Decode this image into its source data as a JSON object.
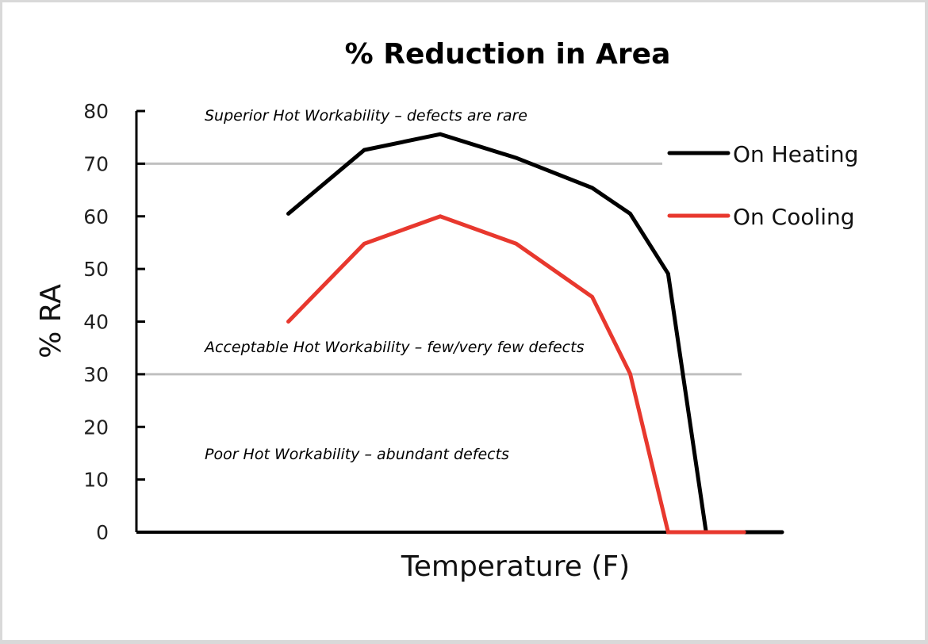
{
  "chart_data": {
    "type": "line",
    "title": "% Reduction in Area",
    "xlabel": "Temperature (F)",
    "ylabel": "% RA",
    "ylim": [
      0,
      80
    ],
    "xlim": [
      0,
      17
    ],
    "yticks": [
      0,
      10,
      20,
      30,
      40,
      50,
      60,
      70,
      80
    ],
    "xticks_shown": false,
    "grid": false,
    "legend_position": "right",
    "reference_lines": [
      {
        "y": 70,
        "color": "#c0c0c0"
      },
      {
        "y": 30,
        "color": "#c0c0c0"
      }
    ],
    "annotations": [
      {
        "text": "Superior Hot Workability – defects are rare",
        "y": 79
      },
      {
        "text": "Acceptable Hot Workability – few/very few defects",
        "y": 35
      },
      {
        "text": "Poor Hot Workability – abundant defects",
        "y": 14.5
      }
    ],
    "series": [
      {
        "name": "On Heating",
        "color": "#000000",
        "x": [
          4,
          6,
          8,
          10,
          12,
          13,
          14,
          15,
          16,
          17
        ],
        "y": [
          60.5,
          72.6,
          75.6,
          71.1,
          65.4,
          60.5,
          49.1,
          0,
          0,
          0
        ]
      },
      {
        "name": "On Cooling",
        "color": "#e8382e",
        "x": [
          4,
          6,
          8,
          10,
          12,
          13,
          14,
          15,
          16
        ],
        "y": [
          40,
          54.8,
          60,
          54.8,
          44.7,
          30.1,
          0,
          0,
          0
        ]
      }
    ]
  }
}
